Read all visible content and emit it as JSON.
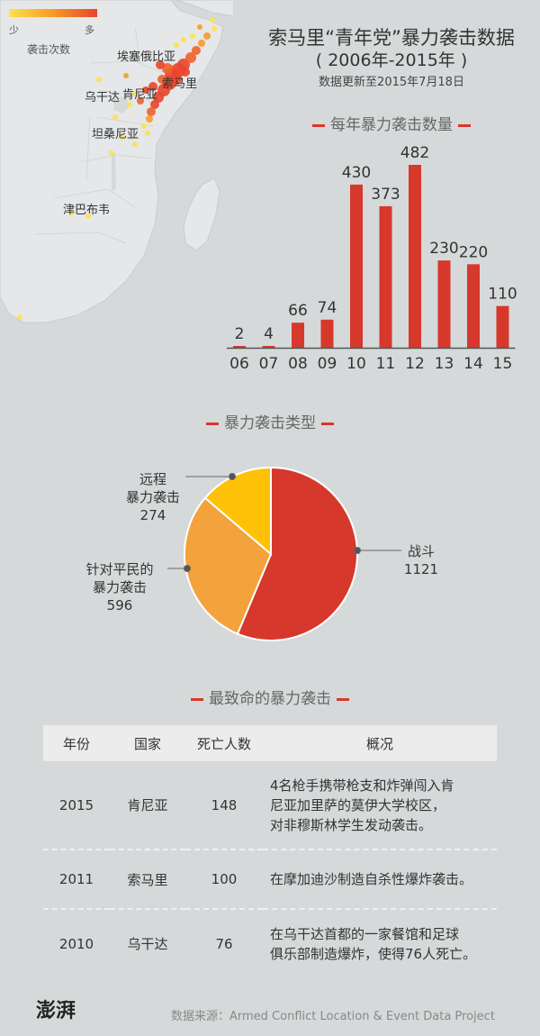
{
  "header": {
    "title": "索马里“青年党”暴力袭击数据",
    "subtitle": "( 2006年-2015年 )",
    "updated": "数据更新至2015年7月18日"
  },
  "map": {
    "legend_low": "少",
    "legend_high": "多",
    "legend_title": "袭击次数",
    "labels": {
      "ethiopia": "埃塞俄比亚",
      "somalia": "索马里",
      "uganda": "乌干达",
      "kenya": "肯尼亚",
      "tanzania": "坦桑尼亚",
      "zimbabwe": "津巴布韦"
    }
  },
  "sections": {
    "yearly": "每年暴力袭击数量",
    "types": "暴力袭击类型",
    "deadliest": "最致命的暴力袭击"
  },
  "chart_data": [
    {
      "type": "bar",
      "title": "每年暴力袭击数量",
      "categories": [
        "06",
        "07",
        "08",
        "09",
        "10",
        "11",
        "12",
        "13",
        "14",
        "15"
      ],
      "values": [
        2,
        4,
        66,
        74,
        430,
        373,
        482,
        230,
        220,
        110
      ],
      "color": "#d7382c"
    },
    {
      "type": "pie",
      "title": "暴力袭击类型",
      "slices": [
        {
          "label": "战斗",
          "value": 1121,
          "color": "#d7382c"
        },
        {
          "label": "针对平民的暴力袭击",
          "value": 596,
          "color": "#f4a23b"
        },
        {
          "label": "远程暴力袭击",
          "value": 274,
          "color": "#ffc107"
        }
      ]
    }
  ],
  "pie_labels": {
    "battle": {
      "lines": [
        "战斗"
      ],
      "value": "1121"
    },
    "civilian": {
      "lines": [
        "针对平民的",
        "暴力袭击"
      ],
      "value": "596"
    },
    "remote": {
      "lines": [
        "远程",
        "暴力袭击"
      ],
      "value": "274"
    }
  },
  "table": {
    "headers": [
      "年份",
      "国家",
      "死亡人数",
      "概况"
    ],
    "rows": [
      {
        "year": "2015",
        "country": "肯尼亚",
        "deaths": "148",
        "desc_lines": [
          "4名枪手携带枪支和炸弹闯入肯",
          "尼亚加里萨的莫伊大学校区，",
          "对非穆斯林学生发动袭击。"
        ]
      },
      {
        "year": "2011",
        "country": "索马里",
        "deaths": "100",
        "desc_lines": [
          "在摩加迪沙制造自杀性爆炸袭击。"
        ]
      },
      {
        "year": "2010",
        "country": "乌干达",
        "deaths": "76",
        "desc_lines": [
          "在乌干达首都的一家餐馆和足球",
          "俱乐部制造爆炸，使得76人死亡。"
        ]
      }
    ]
  },
  "footer": {
    "logo": "澎湃",
    "source": "数据来源：Armed Conflict Location & Event Data Project"
  }
}
